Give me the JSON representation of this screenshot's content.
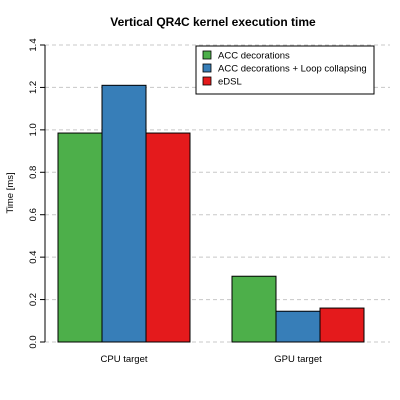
{
  "chart_data": {
    "type": "bar",
    "title": "Vertical QR4C kernel execution time",
    "xlabel": "",
    "ylabel": "Time [ms]",
    "ylim": [
      0,
      1.4
    ],
    "yticks": [
      "0.0",
      "0.2",
      "0.4",
      "0.6",
      "0.8",
      "1.0",
      "1.2",
      "1.4"
    ],
    "grid": true,
    "legend_position": "top-right",
    "categories": [
      "CPU target",
      "GPU target"
    ],
    "series": [
      {
        "name": "ACC decorations",
        "color": "#4daf4a",
        "values": [
          0.985,
          0.31
        ]
      },
      {
        "name": "ACC decorations + Loop collapsing",
        "color": "#377eb8",
        "values": [
          1.21,
          0.145
        ]
      },
      {
        "name": "eDSL",
        "color": "#e41a1c",
        "values": [
          0.985,
          0.16
        ]
      }
    ]
  }
}
